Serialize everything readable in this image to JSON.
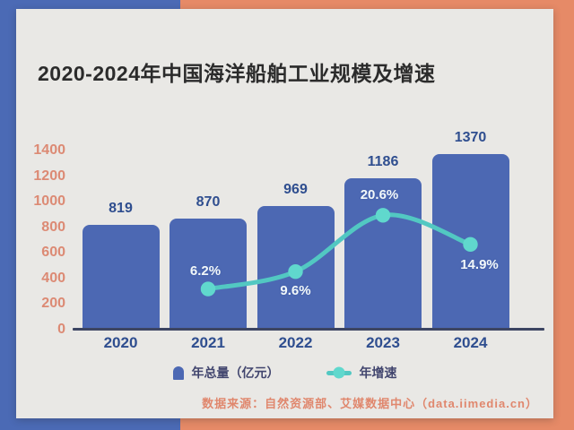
{
  "page": {
    "bg_left_color": "#4b6ab5",
    "bg_right_color": "#e68a67",
    "card_color": "#e9e8e5",
    "title_color": "#2b2b2b"
  },
  "title": "2020-2024年中国海洋船舶工业规模及增速",
  "chart_data": {
    "type": "bar+line",
    "title": "2020-2024年中国海洋船舶工业规模及增速",
    "categories": [
      "2020",
      "2021",
      "2022",
      "2023",
      "2024"
    ],
    "series": [
      {
        "name": "年总量（亿元）",
        "type": "bar",
        "values": [
          819,
          870,
          969,
          1186,
          1370
        ],
        "color": "#4c68b3"
      },
      {
        "name": "年增速",
        "type": "line",
        "values": [
          null,
          6.2,
          9.6,
          20.6,
          14.9
        ],
        "point_labels": [
          null,
          "6.2%",
          "9.6%",
          "20.6%",
          "14.9%"
        ],
        "color": "#52c8c2",
        "dot_color": "#60d8cd"
      }
    ],
    "ylim": [
      0,
      1400
    ],
    "yticks": [
      0,
      200,
      400,
      600,
      800,
      1000,
      1200,
      1400
    ],
    "y2lim": [
      0,
      35
    ],
    "grid": false,
    "legend_position": "bottom",
    "colors": {
      "ytick": "#dc8a74",
      "value_label": "#2f4e8f",
      "xlabel": "#2f4e8f",
      "axis_line": "#3c4562",
      "pct_label": "#f2f8fa"
    }
  },
  "legend": {
    "items": [
      {
        "label": "年总量（亿元）",
        "swatch": "bar-icon"
      },
      {
        "label": "年增速",
        "swatch": "line-dot-icon"
      }
    ],
    "text_color": "#41456e"
  },
  "source": {
    "text": "数据来源：自然资源部、艾媒数据中心（data.iimedia.cn）",
    "color": "#e0876d"
  }
}
